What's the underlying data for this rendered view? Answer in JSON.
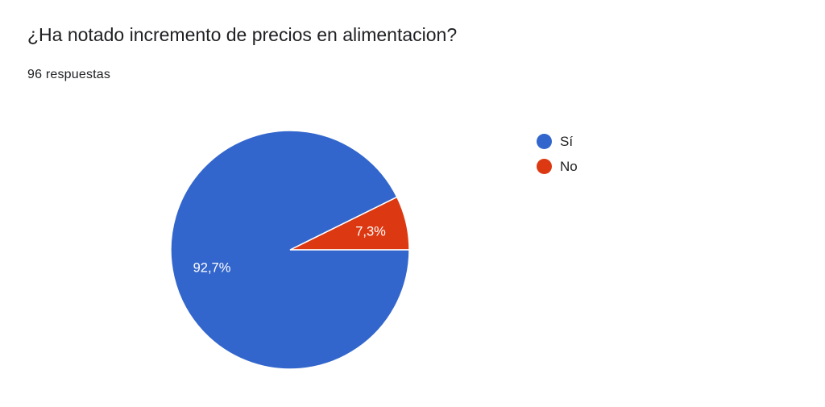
{
  "header": {
    "title": "¿Ha notado incremento de precios en alimentacion?",
    "responses": "96 respuestas"
  },
  "chart_data": {
    "type": "pie",
    "categories": [
      "Sí",
      "No"
    ],
    "values": [
      92.7,
      7.3
    ],
    "data_labels": [
      "92,7%",
      "7,3%"
    ],
    "colors": [
      "#3366cc",
      "#dc3912"
    ],
    "legend_position": "right"
  }
}
